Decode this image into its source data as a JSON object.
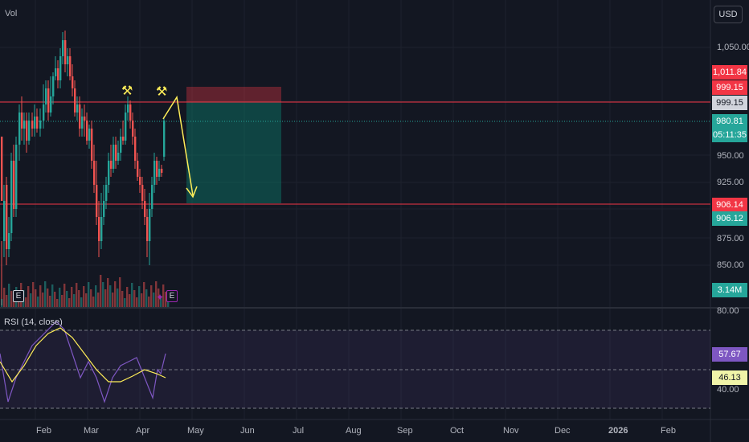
{
  "header": {
    "currency_button": "USD",
    "volume_label": "Vol"
  },
  "rsi": {
    "label": "RSI (14, close)",
    "upper": "80.00",
    "lower": "40.00",
    "rsi_value": "57.67",
    "ma_value": "46.13"
  },
  "price_axis": {
    "ticks": [
      "1,050.00",
      "950.00",
      "925.00",
      "875.00",
      "850.00"
    ],
    "tags": {
      "stop_high": "1,011.84",
      "entry_level_a": "999.15",
      "entry_level_b": "999.15",
      "last_price": "980.81",
      "countdown": "05:11:35",
      "target_red": "906.14",
      "target_green": "906.12",
      "volume": "3.14M"
    }
  },
  "time_axis": [
    "Feb",
    "Mar",
    "Apr",
    "May",
    "Jun",
    "Jul",
    "Aug",
    "Sep",
    "Oct",
    "Nov",
    "Dec",
    "2026",
    "Feb"
  ],
  "colors": {
    "background": "#131722",
    "up": "#26a69a",
    "down": "#ef5350",
    "level_line": "#f23645",
    "annotation": "#ffee58",
    "rsi_line": "#7e57c2",
    "rsi_ma": "#ffee58"
  },
  "icons": [
    "earnings-badge",
    "pencil-icon",
    "hammer-icon"
  ],
  "earnings_badge": "E"
}
